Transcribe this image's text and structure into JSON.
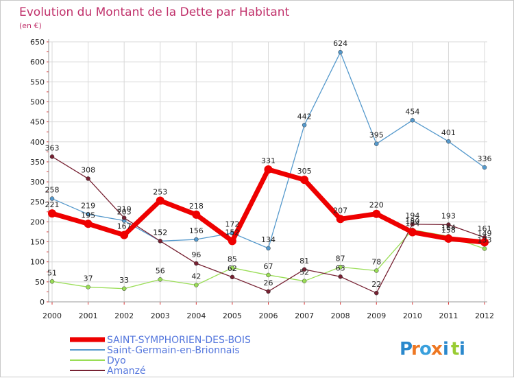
{
  "chart_data": {
    "type": "line",
    "title": "Evolution du Montant de la Dette par Habitant",
    "subtitle": "(en €)",
    "x": [
      "2000",
      "2001",
      "2002",
      "2003",
      "2004",
      "2005",
      "2006",
      "2007",
      "2008",
      "2009",
      "2010",
      "2011",
      "2012"
    ],
    "ylim": [
      0,
      650
    ],
    "yticks": [
      0,
      50,
      100,
      150,
      200,
      250,
      300,
      350,
      400,
      450,
      500,
      550,
      600,
      650
    ],
    "grid": true,
    "legend_position": "bottom-left",
    "series": [
      {
        "name": "SAINT-SYMPHORIEN-DES-BOIS",
        "color": "#ee0000",
        "values": [
          221,
          195,
          167,
          253,
          218,
          152,
          331,
          305,
          207,
          220,
          174,
          158,
          149
        ]
      },
      {
        "name": "Saint-Germain-en-Brionnais",
        "color": "#5599cc",
        "values": [
          258,
          219,
          203,
          152,
          156,
          172,
          134,
          442,
          624,
          395,
          454,
          401,
          336
        ]
      },
      {
        "name": "Dyo",
        "color": "#99dd55",
        "values": [
          51,
          37,
          33,
          56,
          42,
          85,
          67,
          52,
          87,
          78,
          180,
          164,
          133
        ]
      },
      {
        "name": "Amanzé",
        "color": "#772233",
        "values": [
          363,
          308,
          210,
          152,
          96,
          62,
          26,
          81,
          63,
          22,
          194,
          193,
          161
        ]
      }
    ]
  },
  "logo": {
    "text": "Proxiti",
    "letters": [
      "P",
      "r",
      "o",
      "x",
      "i",
      "t",
      "i"
    ]
  }
}
